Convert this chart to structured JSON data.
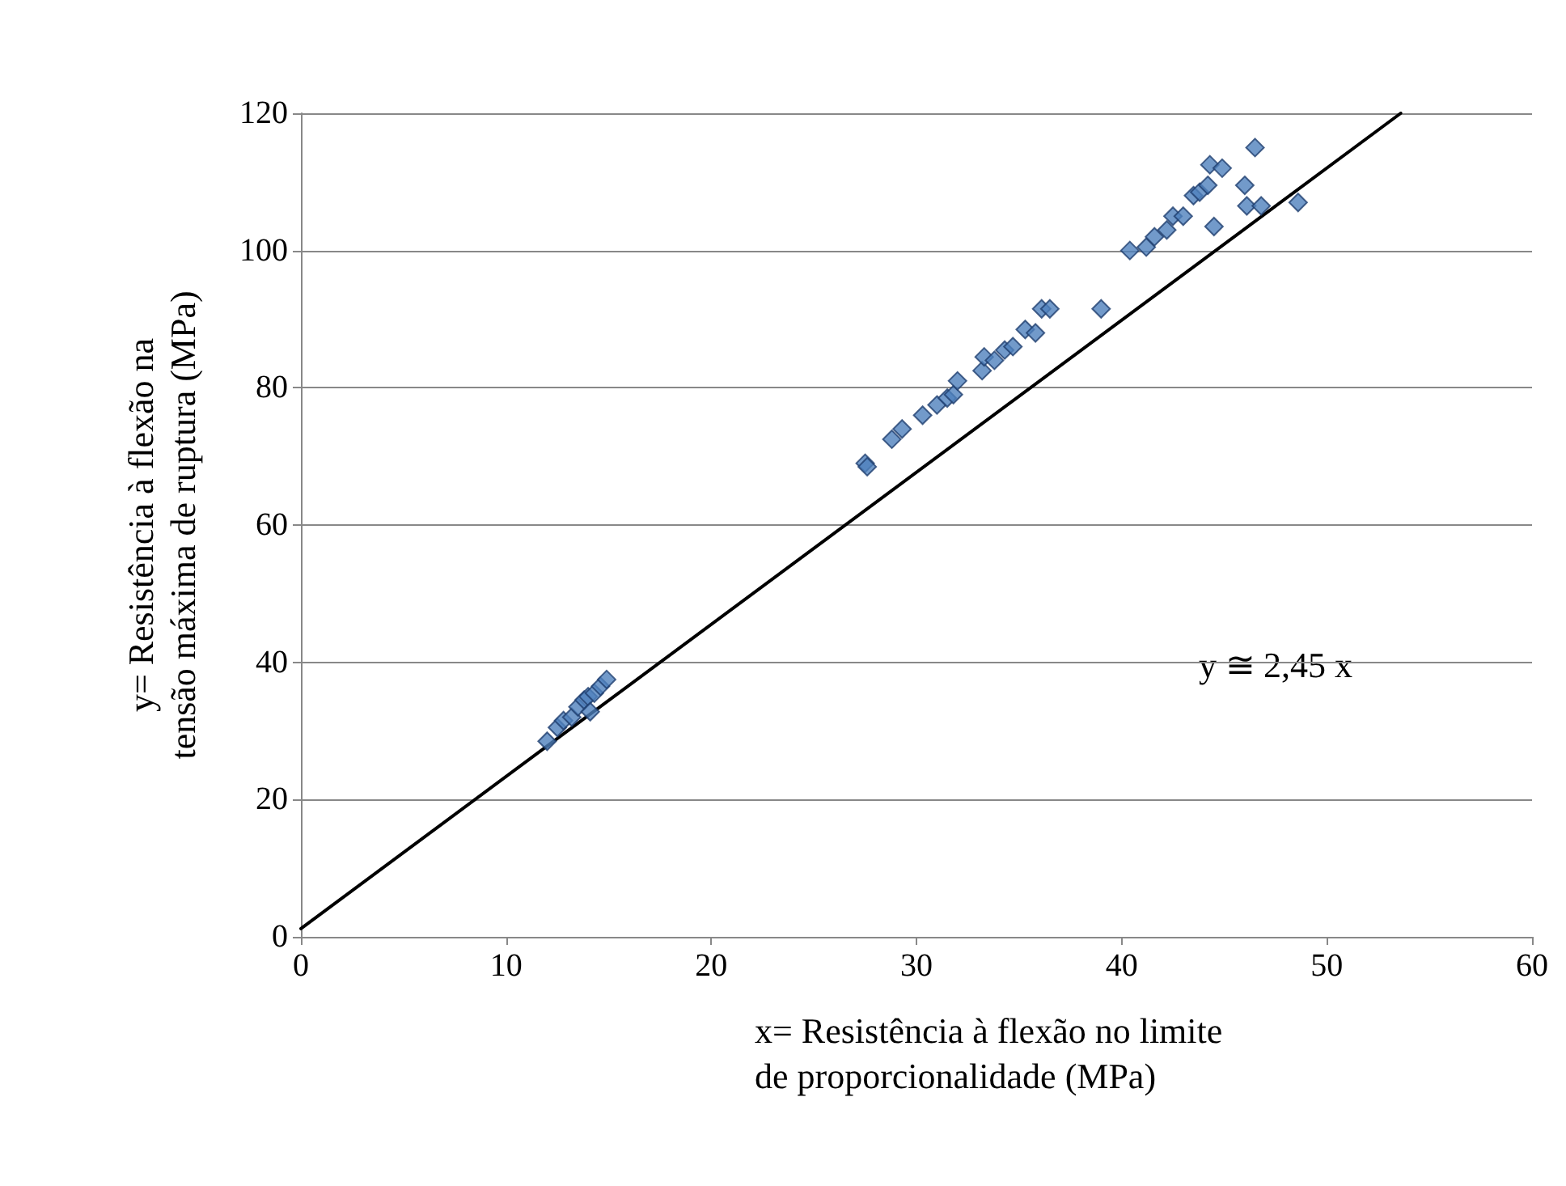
{
  "chart_data": {
    "type": "scatter",
    "xlabel": "x= Resistência à flexão no limite de proporcionalidade (MPa)",
    "ylabel": "y= Resistência à flexão na tensão máxima de ruptura (MPa)",
    "annotations": [
      "y ≅ 2,45 x"
    ],
    "xlim": [
      0,
      60
    ],
    "xticks": [
      0,
      10,
      20,
      30,
      40,
      50,
      60
    ],
    "ylim": [
      0,
      120
    ],
    "yticks": [
      0,
      20,
      40,
      60,
      80,
      100,
      120
    ],
    "grid": "y",
    "marker": "diamond",
    "series": [
      {
        "color": "#4f81bd",
        "x": [
          12,
          12.5,
          12.8,
          13.2,
          13.5,
          13.8,
          14,
          14.1,
          14.3,
          14.6,
          14.9,
          27.5,
          27.6,
          28.8,
          29.3,
          30.3,
          31,
          31.5,
          31.8,
          32,
          33.2,
          33.3,
          33.8,
          34.3,
          34.7,
          35.3,
          35.8,
          36.1,
          36.5,
          39,
          40.4,
          41.2,
          41.6,
          42.2,
          42.5,
          43,
          43.5,
          43.8,
          44.2,
          44.3,
          44.9,
          44.5,
          46,
          46.1,
          46.5,
          46.8,
          48.6
        ],
        "values": [
          28.5,
          30.5,
          31.5,
          32,
          33.5,
          34.5,
          35,
          32.8,
          35.5,
          36.5,
          37.5,
          69,
          68.5,
          72.5,
          74,
          76,
          77.5,
          78.5,
          79,
          81,
          82.5,
          84.5,
          84,
          85.5,
          86,
          88.5,
          88,
          91.5,
          91.5,
          91.5,
          100,
          100.5,
          102,
          103,
          105,
          105,
          108,
          108.5,
          109.5,
          112.5,
          112,
          103.5,
          109.5,
          106.5,
          115,
          106.5,
          107
        ]
      },
      {
        "type": "line",
        "color": "#000000",
        "marker": "none",
        "line_style": "solid",
        "x": [
          0,
          53.6
        ],
        "values": [
          1.2,
          120
        ]
      }
    ]
  }
}
